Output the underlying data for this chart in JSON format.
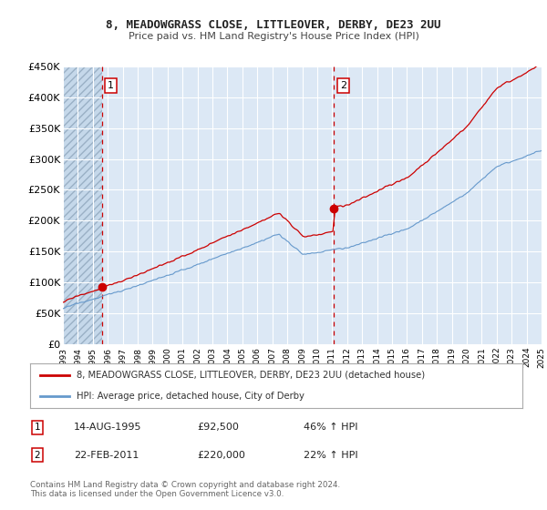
{
  "title": "8, MEADOWGRASS CLOSE, LITTLEOVER, DERBY, DE23 2UU",
  "subtitle": "Price paid vs. HM Land Registry's House Price Index (HPI)",
  "ylim": [
    0,
    450000
  ],
  "yticks": [
    0,
    50000,
    100000,
    150000,
    200000,
    250000,
    300000,
    350000,
    400000,
    450000
  ],
  "ytick_labels": [
    "£0",
    "£50K",
    "£100K",
    "£150K",
    "£200K",
    "£250K",
    "£300K",
    "£350K",
    "£400K",
    "£450K"
  ],
  "background_color": "#ffffff",
  "plot_bg_color": "#dce8f5",
  "hatch_region_color": "#c5d8ea",
  "grid_color": "#ffffff",
  "legend_label_red": "8, MEADOWGRASS CLOSE, LITTLEOVER, DERBY, DE23 2UU (detached house)",
  "legend_label_blue": "HPI: Average price, detached house, City of Derby",
  "annotation1_date": "14-AUG-1995",
  "annotation1_price": "£92,500",
  "annotation1_hpi": "46% ↑ HPI",
  "annotation2_date": "22-FEB-2011",
  "annotation2_price": "£220,000",
  "annotation2_hpi": "22% ↑ HPI",
  "copyright_text": "Contains HM Land Registry data © Crown copyright and database right 2024.\nThis data is licensed under the Open Government Licence v3.0.",
  "sale1_year": 1995.62,
  "sale1_price": 92500,
  "sale2_year": 2011.13,
  "sale2_price": 220000,
  "red_line_color": "#cc0000",
  "blue_line_color": "#6699cc",
  "xmin": 1993,
  "xmax": 2025
}
